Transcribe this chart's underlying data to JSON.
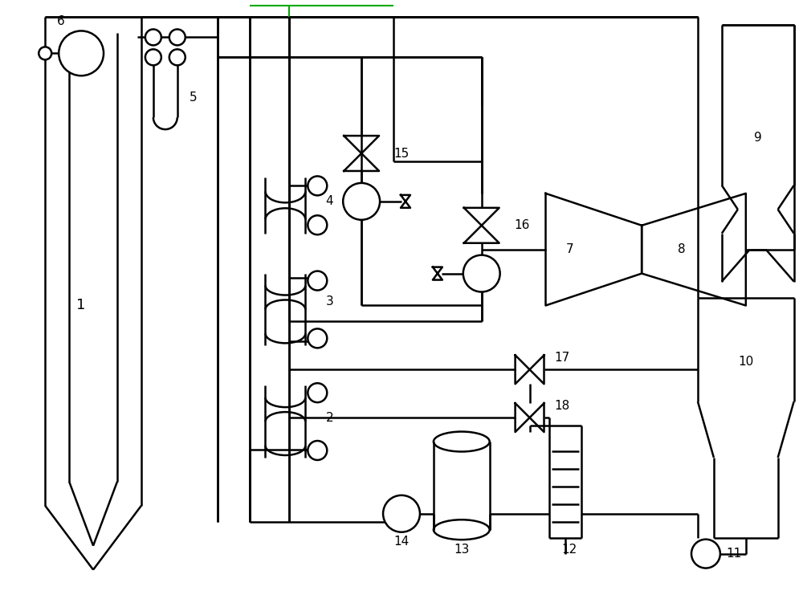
{
  "bg_color": "#ffffff",
  "lc": "#000000",
  "lw": 1.8,
  "green": "#00aa00",
  "fig_w": 10.0,
  "fig_h": 7.51
}
